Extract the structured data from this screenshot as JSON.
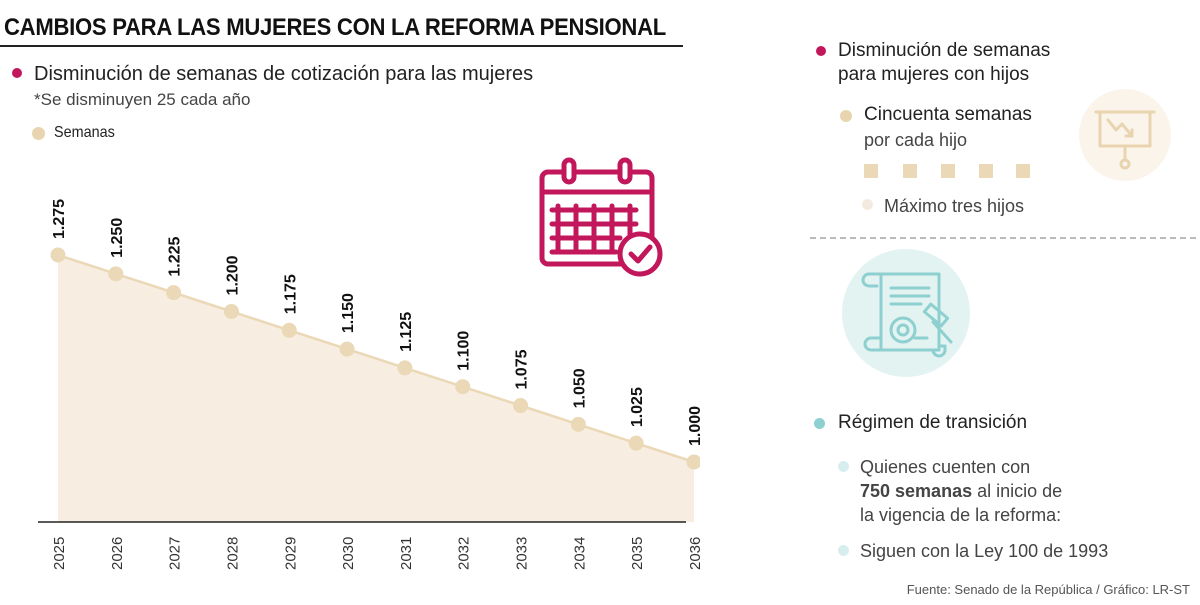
{
  "title": "CAMBIOS PARA LAS MUJERES CON LA REFORMA PENSIONAL",
  "left": {
    "heading": "Disminución de semanas de cotización para las mujeres",
    "note": "*Se disminuyen 25 cada año",
    "legend": "Semanas"
  },
  "chart_data": {
    "type": "area",
    "title": "",
    "xlabel": "",
    "ylabel": "",
    "x": [
      "2025",
      "2026",
      "2027",
      "2028",
      "2029",
      "2030",
      "2031",
      "2032",
      "2033",
      "2034",
      "2035",
      "2036"
    ],
    "series": [
      {
        "name": "Semanas",
        "values": [
          1275,
          1250,
          1225,
          1200,
          1175,
          1150,
          1125,
          1100,
          1075,
          1050,
          1025,
          1000
        ]
      }
    ],
    "value_labels": [
      "1.275",
      "1.250",
      "1.225",
      "1.200",
      "1.175",
      "1.150",
      "1.125",
      "1.100",
      "1.075",
      "1.050",
      "1.025",
      "1.000"
    ],
    "grid": false,
    "legend_position": "top-left"
  },
  "right": {
    "section1": {
      "heading_line1": "Disminución de semanas",
      "heading_line2": "para mujeres con hijos",
      "item1_line1": "Cincuenta semanas",
      "item1_line2": "por cada hijo",
      "item2": "Máximo tres hijos"
    },
    "section2": {
      "heading": "Régimen de transición",
      "item1_line1": "Quienes cuenten con",
      "item1_bold": "750 semanas",
      "item1_line2_rest": " al inicio de",
      "item1_line3": "la vigencia de la reforma:",
      "item2": "Siguen con la Ley 100 de 1993"
    }
  },
  "icons": {
    "calendar": "calendar-check-icon",
    "presentation": "presentation-chart-down-icon",
    "document": "certificate-gavel-icon"
  },
  "colors": {
    "magenta": "#c2185b",
    "beige": "#e8d5b0",
    "teal": "#8ecfd0",
    "area_fill": "#f7eee1"
  },
  "source": "Fuente: Senado de la República / Gráfico: LR-ST"
}
